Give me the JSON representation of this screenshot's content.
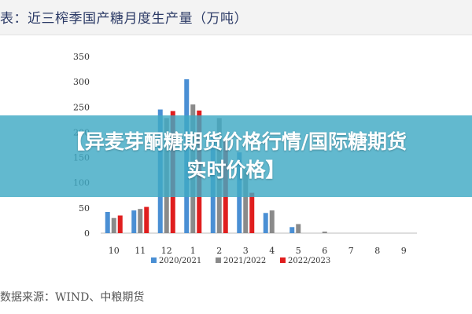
{
  "header": {
    "title": "表：近三榨季国产糖月度生产量（万吨）"
  },
  "source_note": "数据来源：WIND、中粮期货",
  "overlay": {
    "headline": "【异麦芽酮糖期货价格行情/国际糖期货实时价格】"
  },
  "colors": {
    "s2020": "#4a8fd4",
    "s2021": "#8a8a8a",
    "s2022": "#e01e1e"
  },
  "chart_data": {
    "type": "bar",
    "title": "近三榨季国产糖月度生产量（万吨）",
    "categories": [
      "10",
      "11",
      "12",
      "1",
      "2",
      "3",
      "4",
      "5",
      "6",
      "7",
      "8",
      "9"
    ],
    "ylim": [
      0,
      350
    ],
    "yticks": [
      0,
      50,
      100,
      150,
      200,
      250,
      300,
      350
    ],
    "legend_position": "bottom",
    "series": [
      {
        "name": "2020/2021",
        "values": [
          42,
          45,
          245,
          305,
          190,
          160,
          40,
          12,
          0,
          0,
          0,
          0
        ]
      },
      {
        "name": "2021/2022",
        "values": [
          30,
          48,
          228,
          255,
          228,
          125,
          45,
          18,
          3,
          0,
          0,
          0
        ]
      },
      {
        "name": "2022/2023",
        "values": [
          35,
          52,
          242,
          243,
          188,
          80,
          0,
          0,
          0,
          0,
          0,
          0
        ]
      }
    ]
  }
}
